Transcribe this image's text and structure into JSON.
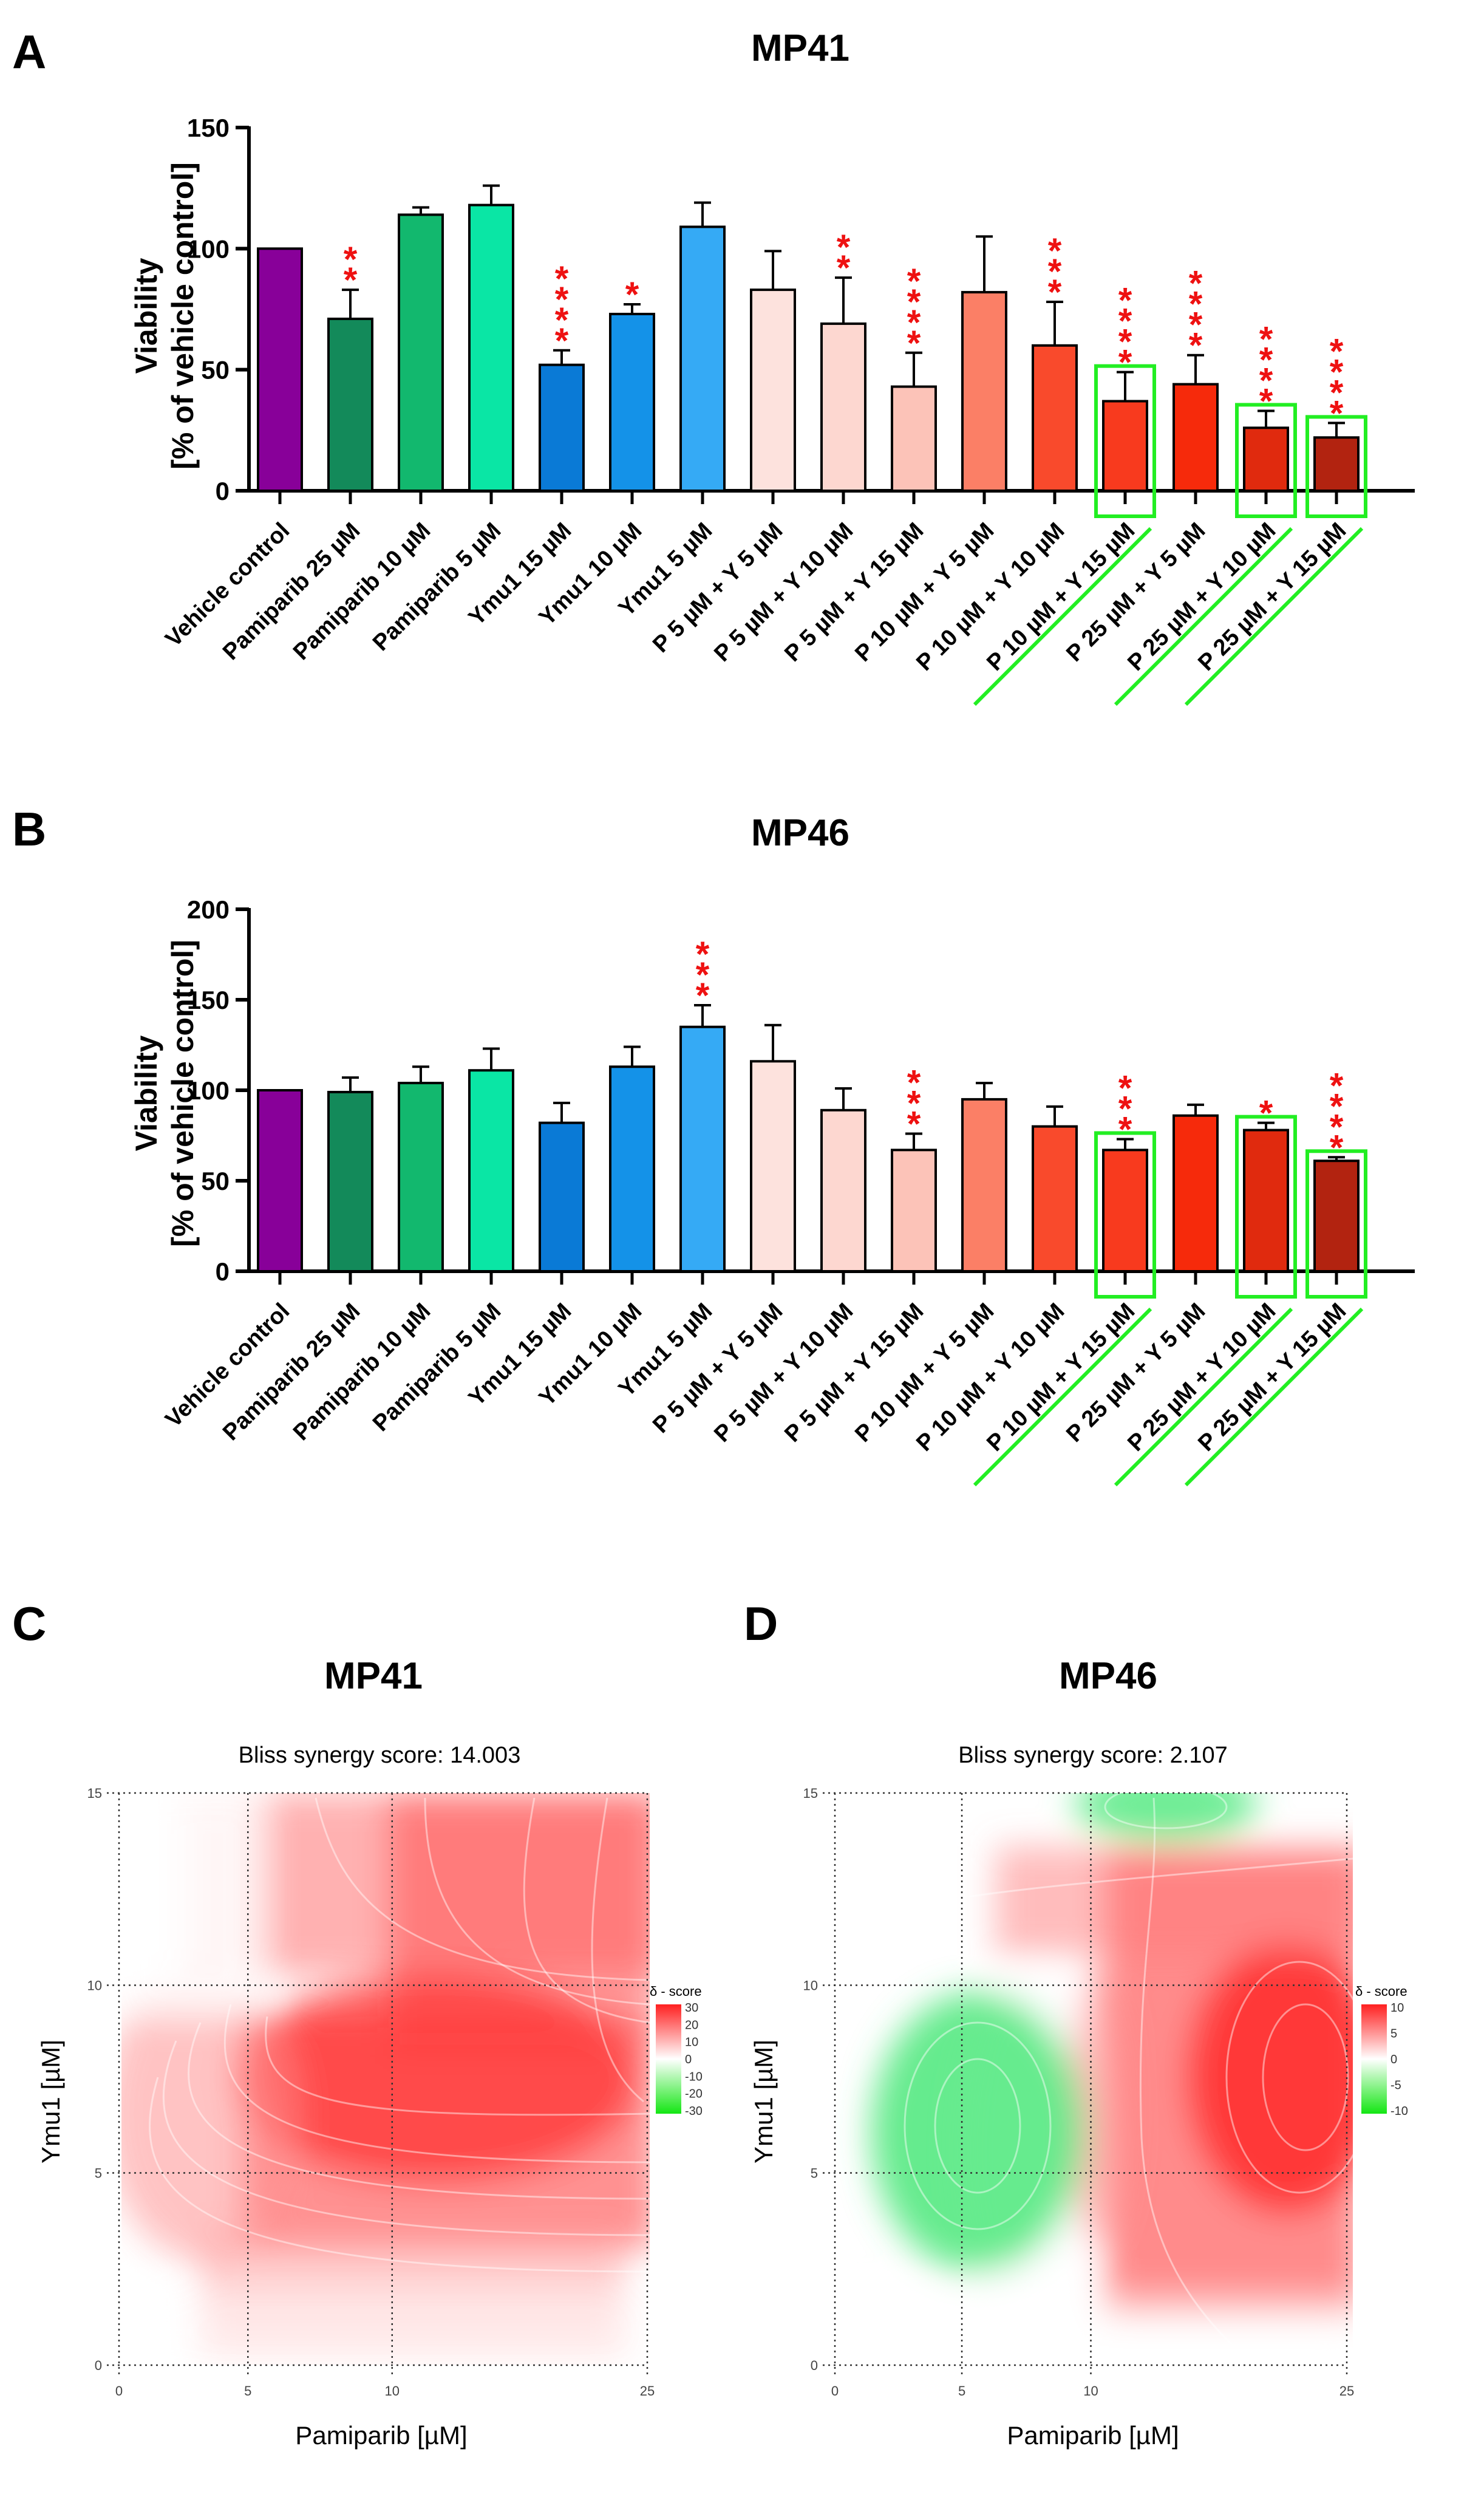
{
  "panels": {
    "A": "A",
    "B": "B",
    "C": "C",
    "D": "D"
  },
  "colors": {
    "bars": [
      "#880099",
      "#138a5a",
      "#12b86e",
      "#0ae6a5",
      "#0a7ad6",
      "#1492e8",
      "#35aaf5",
      "#fde2dd",
      "#fdd7d0",
      "#fcc3b8",
      "#fb7f66",
      "#f94a2c",
      "#f83a1e",
      "#f62a0b",
      "#e02a0e",
      "#b22310"
    ],
    "stars": "#ee1111",
    "highlight": "#22ee22"
  },
  "chart_data": [
    {
      "type": "bar",
      "panel": "A",
      "title": "MP41",
      "ylabel_line1": "Viability",
      "ylabel_line2": "[% of vehicle control]",
      "ylim": [
        0,
        150
      ],
      "yticks": [
        0,
        50,
        100,
        150
      ],
      "categories": [
        "Vehicle control",
        "Pamiparib 25 µM",
        "Pamiparib 10 µM",
        "Pamiparib 5 µM",
        "Ymu1 15 µM",
        "Ymu1 10 µM",
        "Ymu1 5 µM",
        "P 5 µM + Y 5 µM",
        "P 5 µM + Y 10 µM",
        "P 5 µM + Y 15 µM",
        "P 10 µM + Y 5 µM",
        "P 10 µM + Y 10 µM",
        "P 10 µM + Y 15 µM",
        "P 25 µM + Y 5 µM",
        "P 25 µM + Y 10 µM",
        "P 25 µM + Y 15 µM"
      ],
      "values": [
        100,
        71,
        114,
        118,
        52,
        73,
        109,
        83,
        69,
        43,
        82,
        60,
        37,
        44,
        26,
        22
      ],
      "errors": [
        0,
        12,
        3,
        8,
        6,
        4,
        10,
        16,
        19,
        14,
        23,
        18,
        12,
        12,
        7,
        6
      ],
      "significance": [
        "",
        "**",
        "",
        "",
        "****",
        "*",
        "",
        "",
        "**",
        "****",
        "",
        "***",
        "****",
        "****",
        "****",
        "****"
      ],
      "highlighted": [
        12,
        14,
        15
      ]
    },
    {
      "type": "bar",
      "panel": "B",
      "title": "MP46",
      "ylabel_line1": "Viability",
      "ylabel_line2": "[% of vehicle control]",
      "ylim": [
        0,
        200
      ],
      "yticks": [
        0,
        50,
        100,
        150,
        200
      ],
      "categories": [
        "Vehicle control",
        "Pamiparib 25 µM",
        "Pamiparib 10 µM",
        "Pamiparib 5 µM",
        "Ymu1 15 µM",
        "Ymu1 10 µM",
        "Ymu1 5 µM",
        "P 5 µM + Y 5 µM",
        "P 5 µM + Y 10 µM",
        "P 5 µM + Y 15 µM",
        "P 10 µM + Y 5 µM",
        "P 10 µM + Y 10 µM",
        "P 10 µM + Y 15 µM",
        "P 25 µM + Y 5 µM",
        "P 25 µM + Y 10 µM",
        "P 25 µM + Y 15 µM"
      ],
      "values": [
        100,
        99,
        104,
        111,
        82,
        113,
        135,
        116,
        89,
        67,
        95,
        80,
        67,
        86,
        78,
        61
      ],
      "errors": [
        0,
        8,
        9,
        12,
        11,
        11,
        12,
        20,
        12,
        9,
        9,
        11,
        6,
        6,
        4,
        2
      ],
      "significance": [
        "",
        "",
        "",
        "",
        "",
        "",
        "***",
        "",
        "",
        "***",
        "",
        "",
        "***",
        "",
        "*",
        "****"
      ],
      "highlighted": [
        12,
        14,
        15
      ]
    },
    {
      "type": "heatmap",
      "panel": "C",
      "title": "MP41",
      "subtitle": "Bliss synergy score: 14.003",
      "xlabel": "Pamiparib [µM]",
      "ylabel": "Ymu1 [µM]",
      "xticks": [
        "0",
        "5",
        "10",
        "25"
      ],
      "yticks": [
        "0",
        "5",
        "10",
        "15"
      ],
      "legend_title": "δ - score",
      "legend_ticks": [
        "30",
        "20",
        "10",
        "0",
        "-10",
        "-20",
        "-30"
      ],
      "zlim": [
        -30,
        30
      ]
    },
    {
      "type": "heatmap",
      "panel": "D",
      "title": "MP46",
      "subtitle": "Bliss synergy score: 2.107",
      "xlabel": "Pamiparib [µM]",
      "ylabel": "Ymu1 [µM]",
      "xticks": [
        "0",
        "5",
        "10",
        "25"
      ],
      "yticks": [
        "0",
        "5",
        "10",
        "15"
      ],
      "legend_title": "δ - score",
      "legend_ticks": [
        "10",
        "5",
        "0",
        "-5",
        "-10"
      ],
      "zlim": [
        -10,
        10
      ]
    }
  ]
}
